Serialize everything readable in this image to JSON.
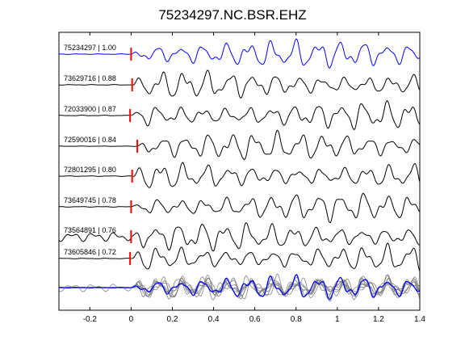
{
  "chart_data": {
    "type": "line",
    "title": "75234297.NC.BSR.EHZ",
    "xlabel": "",
    "ylabel": "",
    "xlim": [
      -0.35,
      1.4
    ],
    "xticks": [
      -0.2,
      0,
      0.2,
      0.4,
      0.6,
      0.8,
      1.0,
      1.2,
      1.4
    ],
    "xtick_labels": [
      "-0.2",
      "0",
      "0.2",
      "0.4",
      "0.6",
      "0.8",
      "1",
      "1.2",
      "1.4"
    ],
    "grid": false,
    "legend": "none",
    "pick_color": "#ff0000",
    "template_color": "#0000ff",
    "trace_color": "#000000",
    "overlay_color": "#808080",
    "traces": [
      {
        "label": "75234297 | 1.00",
        "pick_time": 0.0,
        "color": "#0000ff"
      },
      {
        "label": "73629716 | 0.88",
        "pick_time": 0.005,
        "color": "#000000"
      },
      {
        "label": "72033900 | 0.87",
        "pick_time": -0.005,
        "color": "#000000"
      },
      {
        "label": "72590016 | 0.84",
        "pick_time": 0.03,
        "color": "#000000"
      },
      {
        "label": "72801295 | 0.80",
        "pick_time": 0.005,
        "color": "#000000"
      },
      {
        "label": "73649745 | 0.78",
        "pick_time": 0.0,
        "color": "#000000"
      },
      {
        "label": "73564891 | 0.76",
        "pick_time": 0.0,
        "color": "#000000"
      },
      {
        "label": "73605846 | 0.72",
        "pick_time": -0.005,
        "color": "#000000"
      }
    ],
    "stack": {
      "label": "overlay",
      "note": ""
    }
  }
}
